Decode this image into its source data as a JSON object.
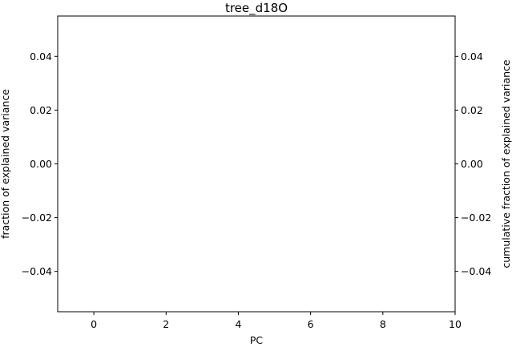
{
  "chart_data": {
    "type": "bar",
    "title": "tree_d18O",
    "xlabel": "PC",
    "ylabel": "fraction of explained variance",
    "y2label": "cumulative fraction of explained variance",
    "xlim": [
      -1,
      10
    ],
    "ylim": [
      -0.055,
      0.055
    ],
    "y2lim": [
      -0.055,
      0.055
    ],
    "xticks": [
      0,
      2,
      4,
      6,
      8,
      10
    ],
    "xtick_labels": [
      "0",
      "2",
      "4",
      "6",
      "8",
      "10"
    ],
    "yticks": [
      -0.04,
      -0.02,
      0.0,
      0.02,
      0.04
    ],
    "ytick_labels": [
      "−0.04",
      "−0.02",
      "0.00",
      "0.02",
      "0.04"
    ],
    "y2ticks": [
      -0.04,
      -0.02,
      0.0,
      0.02,
      0.04
    ],
    "y2tick_labels": [
      "−0.04",
      "−0.02",
      "0.00",
      "0.02",
      "0.04"
    ],
    "grid": false,
    "series": []
  }
}
